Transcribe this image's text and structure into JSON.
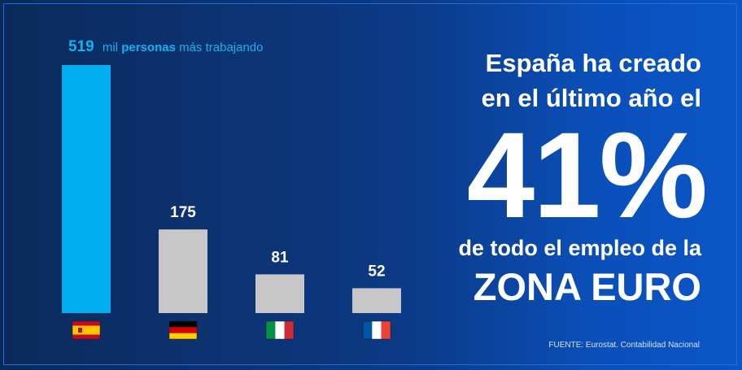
{
  "chart_data": {
    "type": "bar",
    "categories": [
      "España",
      "Alemania",
      "Italia",
      "Francia"
    ],
    "values": [
      519,
      175,
      81,
      52
    ],
    "value_labels": [
      "519",
      "175",
      "81",
      "52"
    ],
    "unit": "mil personas más trabajando",
    "title_parts": {
      "value": "519",
      "pre": "mil",
      "bold": "personas",
      "post": "más trabajando"
    },
    "ylim": [
      0,
      519
    ],
    "colors": {
      "highlight": "#00aeef",
      "others": "#c7c7c7"
    }
  },
  "flags": [
    {
      "country": "España",
      "icon": "spain-flag-icon"
    },
    {
      "country": "Alemania",
      "icon": "germany-flag-icon"
    },
    {
      "country": "Italia",
      "icon": "italy-flag-icon"
    },
    {
      "country": "Francia",
      "icon": "france-flag-icon"
    }
  ],
  "headline": {
    "line1": "España ha creado",
    "line2": "en el último año el",
    "big_number": "41%",
    "line3": "de todo el empleo de la",
    "line4": "ZONA EURO"
  },
  "source": "FUENTE: Eurostat. Contabilidad Nacional"
}
